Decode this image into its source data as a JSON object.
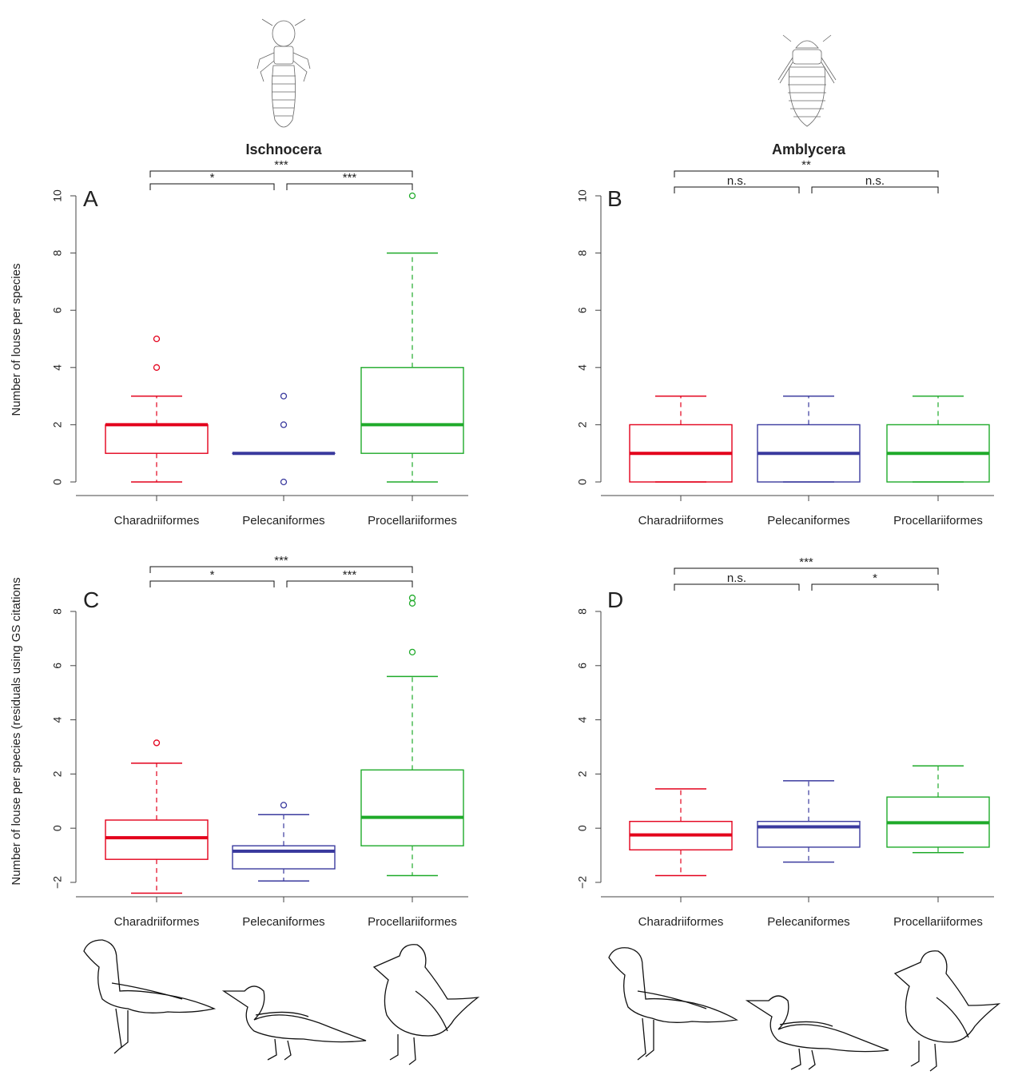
{
  "headers": [
    "Ischnocera",
    "Amblycera"
  ],
  "ylabel_top": "Number of louse per species",
  "ylabel_bottom": "Number of louse per species (residuals using GS citations",
  "colors": {
    "Charadriiformes": "#e3001b",
    "Pelecaniformes": "#3a3a9e",
    "Procellariiformes": "#1faa2a",
    "axis": "#444444"
  },
  "chart_data": [
    {
      "panel": "A",
      "type": "boxplot",
      "categories": [
        "Charadriiformes",
        "Pelecaniformes",
        "Procellariiformes"
      ],
      "ylim": [
        0,
        10
      ],
      "yticks": [
        0,
        2,
        4,
        6,
        8,
        10
      ],
      "boxes": [
        {
          "name": "Charadriiformes",
          "whisker_low": 0,
          "q1": 1,
          "median": 2,
          "q3": 2,
          "whisker_high": 3,
          "outliers": [
            4,
            5
          ]
        },
        {
          "name": "Pelecaniformes",
          "whisker_low": 1,
          "q1": 1,
          "median": 1,
          "q3": 1,
          "whisker_high": 1,
          "outliers": [
            0,
            2,
            3
          ]
        },
        {
          "name": "Procellariiformes",
          "whisker_low": 0,
          "q1": 1,
          "median": 2,
          "q3": 4,
          "whisker_high": 8,
          "outliers": [
            10
          ]
        }
      ],
      "significance": [
        {
          "from": 0,
          "to": 2,
          "label": "***",
          "level": 2
        },
        {
          "from": 0,
          "to": 1,
          "label": "*",
          "level": 1
        },
        {
          "from": 1,
          "to": 2,
          "label": "***",
          "level": 1
        }
      ]
    },
    {
      "panel": "B",
      "type": "boxplot",
      "categories": [
        "Charadriiformes",
        "Pelecaniformes",
        "Procellariiformes"
      ],
      "ylim": [
        0,
        10
      ],
      "yticks": [
        0,
        2,
        4,
        6,
        8,
        10
      ],
      "boxes": [
        {
          "name": "Charadriiformes",
          "whisker_low": 0,
          "q1": 0,
          "median": 1,
          "q3": 2,
          "whisker_high": 3,
          "outliers": []
        },
        {
          "name": "Pelecaniformes",
          "whisker_low": 0,
          "q1": 0,
          "median": 1,
          "q3": 2,
          "whisker_high": 3,
          "outliers": []
        },
        {
          "name": "Procellariiformes",
          "whisker_low": 0,
          "q1": 0,
          "median": 1,
          "q3": 2,
          "whisker_high": 3,
          "outliers": []
        }
      ],
      "significance": [
        {
          "from": 0,
          "to": 2,
          "label": "**",
          "level": 2
        },
        {
          "from": 0,
          "to": 1,
          "label": "n.s.",
          "level": 1
        },
        {
          "from": 1,
          "to": 2,
          "label": "n.s.",
          "level": 1
        }
      ]
    },
    {
      "panel": "C",
      "type": "boxplot",
      "categories": [
        "Charadriiformes",
        "Pelecaniformes",
        "Procellariiformes"
      ],
      "ylim": [
        -2,
        8
      ],
      "yticks": [
        -2,
        0,
        2,
        4,
        6,
        8
      ],
      "boxes": [
        {
          "name": "Charadriiformes",
          "whisker_low": -2.4,
          "q1": -1.15,
          "median": -0.35,
          "q3": 0.3,
          "whisker_high": 2.4,
          "outliers": [
            3.15
          ]
        },
        {
          "name": "Pelecaniformes",
          "whisker_low": -1.95,
          "q1": -1.5,
          "median": -0.85,
          "q3": -0.65,
          "whisker_high": 0.5,
          "outliers": [
            0.85
          ]
        },
        {
          "name": "Procellariiformes",
          "whisker_low": -1.75,
          "q1": -0.65,
          "median": 0.4,
          "q3": 2.15,
          "whisker_high": 5.6,
          "outliers": [
            6.5,
            8.3,
            8.5
          ]
        }
      ],
      "significance": [
        {
          "from": 0,
          "to": 2,
          "label": "***",
          "level": 2
        },
        {
          "from": 0,
          "to": 1,
          "label": "*",
          "level": 1
        },
        {
          "from": 1,
          "to": 2,
          "label": "***",
          "level": 1
        }
      ]
    },
    {
      "panel": "D",
      "type": "boxplot",
      "categories": [
        "Charadriiformes",
        "Pelecaniformes",
        "Procellariiformes"
      ],
      "ylim": [
        -2,
        8
      ],
      "yticks": [
        -2,
        0,
        2,
        4,
        6,
        8
      ],
      "boxes": [
        {
          "name": "Charadriiformes",
          "whisker_low": -1.75,
          "q1": -0.8,
          "median": -0.25,
          "q3": 0.25,
          "whisker_high": 1.45,
          "outliers": []
        },
        {
          "name": "Pelecaniformes",
          "whisker_low": -1.25,
          "q1": -0.7,
          "median": 0.05,
          "q3": 0.25,
          "whisker_high": 1.75,
          "outliers": []
        },
        {
          "name": "Procellariiformes",
          "whisker_low": -0.9,
          "q1": -0.7,
          "median": 0.2,
          "q3": 1.15,
          "whisker_high": 2.3,
          "outliers": []
        }
      ],
      "significance": [
        {
          "from": 0,
          "to": 2,
          "label": "***",
          "level": 2
        },
        {
          "from": 0,
          "to": 1,
          "label": "n.s.",
          "level": 1
        },
        {
          "from": 1,
          "to": 2,
          "label": "*",
          "level": 1
        }
      ]
    }
  ]
}
